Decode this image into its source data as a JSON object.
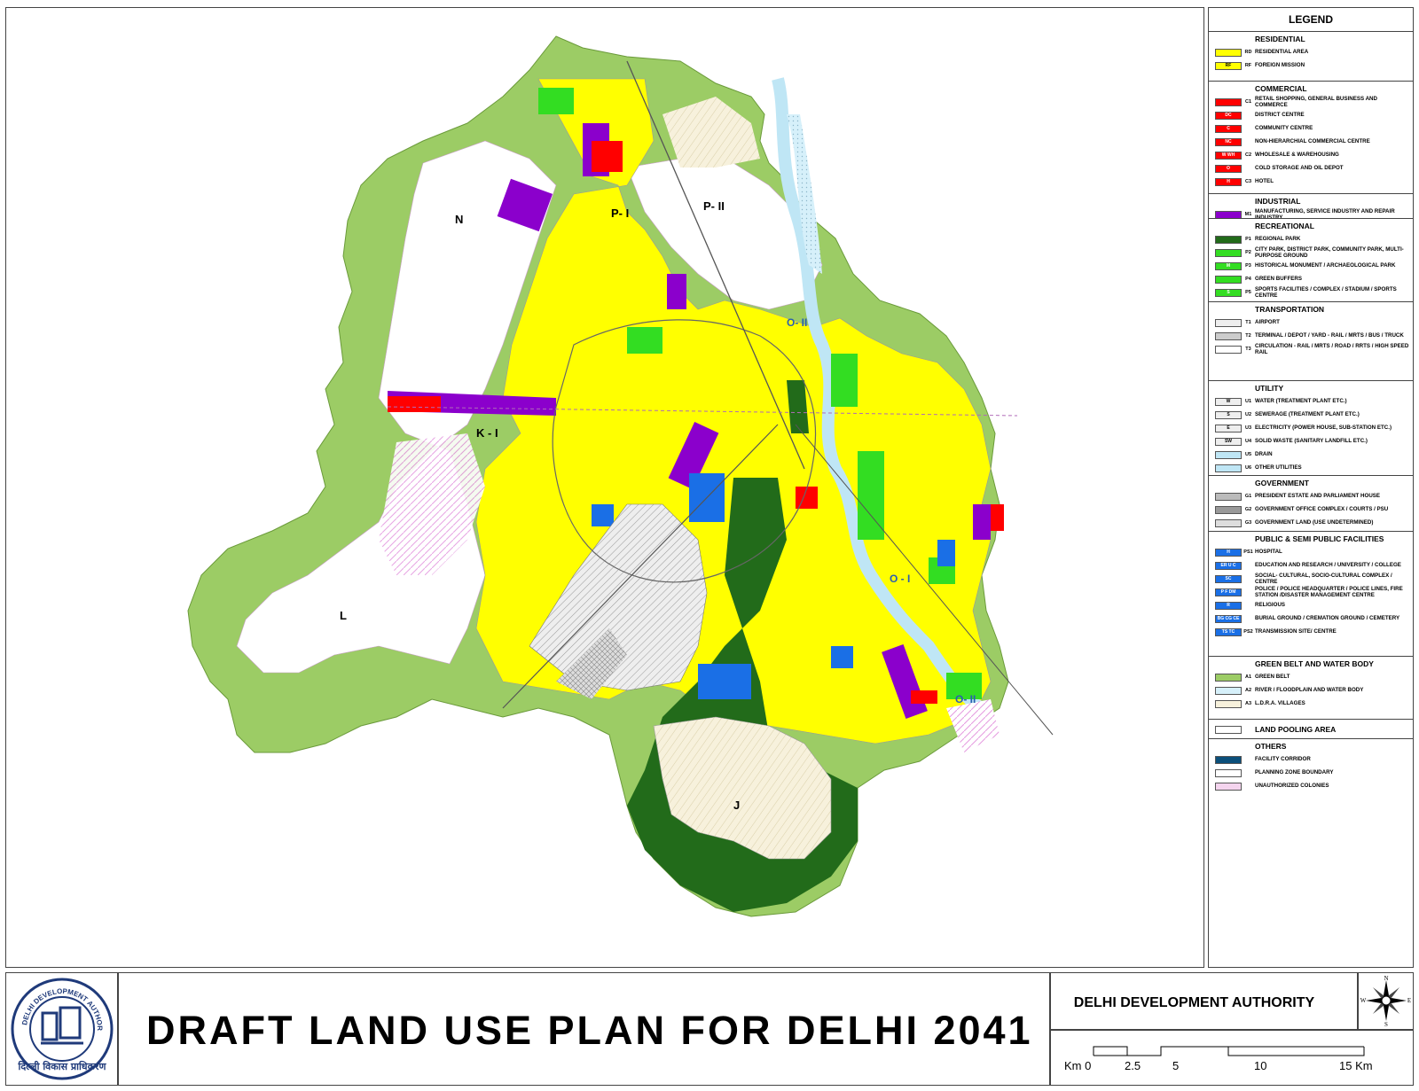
{
  "title": "DRAFT LAND USE PLAN FOR DELHI 2041",
  "authority": "DELHI DEVELOPMENT AUTHORITY",
  "logo": {
    "ring_text": "DELHI DEVELOPMENT AUTHORITY",
    "hindi_text": "दिल्ली विकास प्राधिकरण"
  },
  "compass": {
    "n": "N",
    "s": "S",
    "e": "E",
    "w": "W"
  },
  "scale": {
    "labels": [
      "Km 0",
      "2.5",
      "5",
      "10",
      "15 Km"
    ]
  },
  "zones": [
    "N",
    "P- I",
    "P- II",
    "K - I",
    "L",
    "O- II",
    "O - I",
    "O- II",
    "J"
  ],
  "legend": {
    "title": "LEGEND",
    "sections": [
      {
        "heading": "RESIDENTIAL",
        "items": [
          {
            "sw": "",
            "code": "RD",
            "label": "RESIDENTIAL AREA",
            "color": "#ffff00"
          },
          {
            "sw": "RF",
            "code": "RF",
            "label": "FOREIGN MISSION",
            "color": "#ffff00"
          }
        ]
      },
      {
        "heading": "COMMERCIAL",
        "items": [
          {
            "sw": "",
            "code": "C1",
            "label": "RETAIL SHOPPING, GENERAL BUSINESS AND COMMERCE",
            "color": "#ff0000"
          },
          {
            "sw": "DC",
            "code": "",
            "label": "DISTRICT CENTRE",
            "color": "#ff0000"
          },
          {
            "sw": "C",
            "code": "",
            "label": "COMMUNITY CENTRE",
            "color": "#ff0000"
          },
          {
            "sw": "NC",
            "code": "",
            "label": "NON-HIERARCHIAL COMMERCIAL CENTRE",
            "color": "#ff0000"
          },
          {
            "sw": "W WH",
            "code": "C2",
            "label": "WHOLESALE & WAREHOUSING",
            "color": "#ff0000"
          },
          {
            "sw": "O",
            "code": "",
            "label": "COLD STORAGE AND OIL DEPOT",
            "color": "#ff0000"
          },
          {
            "sw": "H",
            "code": "C3",
            "label": "HOTEL",
            "color": "#ff0000"
          }
        ]
      },
      {
        "heading": "INDUSTRIAL",
        "items": [
          {
            "sw": "",
            "code": "M1",
            "label": "MANUFACTURING, SERVICE INDUSTRY AND REPAIR INDUSTRY",
            "color": "#8b00cc"
          }
        ]
      },
      {
        "heading": "RECREATIONAL",
        "items": [
          {
            "sw": "",
            "code": "P1",
            "label": "REGIONAL PARK",
            "color": "#226b1a"
          },
          {
            "sw": "",
            "code": "P2",
            "label": "CITY PARK, DISTRICT PARK, COMMUNITY PARK, MULTI-PURPOSE GROUND",
            "color": "#33dd22"
          },
          {
            "sw": "M",
            "code": "P3",
            "label": "HISTORICAL MONUMENT / ARCHAEOLOGICAL PARK",
            "color": "#33dd22"
          },
          {
            "sw": "",
            "code": "P4",
            "label": "GREEN BUFFERS",
            "color": "#33dd22"
          },
          {
            "sw": "S",
            "code": "P5",
            "label": "SPORTS FACILITIES / COMPLEX / STADIUM / SPORTS CENTRE",
            "color": "#33dd22"
          }
        ]
      },
      {
        "heading": "TRANSPORTATION",
        "items": [
          {
            "sw": "",
            "code": "T1",
            "label": "AIRPORT",
            "color": "#eeeeee"
          },
          {
            "sw": "",
            "code": "T2",
            "label": "TERMINAL / DEPOT / YARD - RAIL / MRTS / BUS / TRUCK",
            "color": "#cccccc"
          },
          {
            "sw": "",
            "code": "T3",
            "label": "CIRCULATION - RAIL / MRTS / ROAD / RRTS / HIGH SPEED RAIL",
            "color": "#ffffff"
          }
        ]
      },
      {
        "heading": "UTILITY",
        "items": [
          {
            "sw": "W",
            "code": "U1",
            "label": "WATER (TREATMENT PLANT ETC.)",
            "color": "#eeeeee"
          },
          {
            "sw": "S",
            "code": "U2",
            "label": "SEWERAGE (TREATMENT PLANT ETC.)",
            "color": "#eeeeee"
          },
          {
            "sw": "E",
            "code": "U3",
            "label": "ELECTRICITY (POWER HOUSE, SUB-STATION ETC.)",
            "color": "#eeeeee"
          },
          {
            "sw": "SW",
            "code": "U4",
            "label": "SOLID WASTE (SANITARY LANDFILL ETC.)",
            "color": "#eeeeee"
          },
          {
            "sw": "",
            "code": "U5",
            "label": "DRAIN",
            "color": "#bfe6f5"
          },
          {
            "sw": "",
            "code": "U6",
            "label": "OTHER UTILITIES",
            "color": "#bfe6f5"
          }
        ]
      },
      {
        "heading": "GOVERNMENT",
        "items": [
          {
            "sw": "",
            "code": "G1",
            "label": "PRESIDENT ESTATE AND PARLIAMENT HOUSE",
            "color": "#bbbbbb"
          },
          {
            "sw": "",
            "code": "G2",
            "label": "GOVERNMENT OFFICE COMPLEX / COURTS / PSU",
            "color": "#999999"
          },
          {
            "sw": "",
            "code": "G3",
            "label": "GOVERNMENT LAND (USE UNDETERMINED)",
            "color": "#dddddd"
          }
        ]
      },
      {
        "heading": "PUBLIC & SEMI PUBLIC FACILITIES",
        "items": [
          {
            "sw": "H",
            "code": "PS1",
            "label": "HOSPITAL",
            "color": "#1a6fe6"
          },
          {
            "sw": "ER U C",
            "code": "",
            "label": "EDUCATION AND RESEARCH / UNIVERSITY / COLLEGE",
            "color": "#1a6fe6"
          },
          {
            "sw": "SC",
            "code": "",
            "label": "SOCIAL- CULTURAL, SOCIO-CULTURAL COMPLEX / CENTRE",
            "color": "#1a6fe6"
          },
          {
            "sw": "P F DM",
            "code": "",
            "label": "POLICE / POLICE HEADQUARTER / POLICE LINES, FIRE STATION /DISASTER MANAGEMENT CENTRE",
            "color": "#1a6fe6"
          },
          {
            "sw": "R",
            "code": "",
            "label": "RELIGIOUS",
            "color": "#1a6fe6"
          },
          {
            "sw": "BG CG CE",
            "code": "",
            "label": "BURIAL GROUND / CREMATION GROUND / CEMETERY",
            "color": "#1a6fe6"
          },
          {
            "sw": "TS TC",
            "code": "PS2",
            "label": "TRANSMISSION SITE/ CENTRE",
            "color": "#1a6fe6"
          }
        ]
      },
      {
        "heading": "GREEN BELT AND WATER BODY",
        "items": [
          {
            "sw": "",
            "code": "A1",
            "label": "GREEN BELT",
            "color": "#9ccc65"
          },
          {
            "sw": "",
            "code": "A2",
            "label": "RIVER / FLOODPLAIN AND WATER BODY",
            "color": "#d6f0fa"
          },
          {
            "sw": "",
            "code": "A3",
            "label": "L.D.R.A. VILLAGES",
            "color": "#f7f1dc"
          }
        ]
      },
      {
        "heading": "LAND POOLING AREA",
        "items": []
      },
      {
        "heading": "OTHERS",
        "items": [
          {
            "sw": "",
            "code": "",
            "label": "FACILITY CORRIDOR",
            "color": "#0b4f7a"
          },
          {
            "sw": "",
            "code": "",
            "label": "PLANNING ZONE BOUNDARY",
            "color": "#ffffff"
          },
          {
            "sw": "",
            "code": "",
            "label": "UNAUTHORIZED COLONIES",
            "color": "#f4d4ee"
          }
        ]
      }
    ]
  },
  "colors": {
    "residential": "#ffff00",
    "commercial": "#ff0000",
    "industrial": "#8b00cc",
    "regional_park": "#226b1a",
    "park": "#33dd22",
    "public": "#1a6fe6",
    "green_belt": "#9ccc65",
    "river": "#bfe6f5",
    "government": "#cccccc",
    "villages": "#f7f1dc",
    "unauthorized": "#e59be0"
  }
}
